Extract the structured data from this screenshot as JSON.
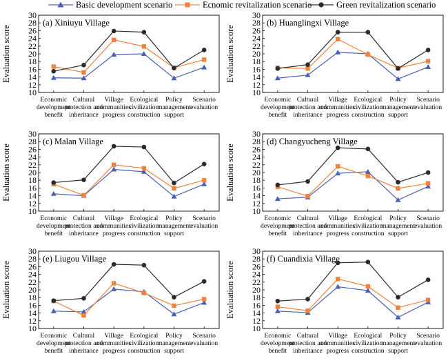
{
  "legend": {
    "series": [
      {
        "name": "Basic development scenario",
        "color": "#4a5fb5",
        "marker": "triangle"
      },
      {
        "name": "Ecnomic revitalization scenario",
        "color": "#f0823c",
        "marker": "square"
      },
      {
        "name": "Green revitalization scenario",
        "color": "#2a2a2a",
        "marker": "circle"
      }
    ]
  },
  "categories": [
    [
      "Economic",
      "development",
      "benefit"
    ],
    [
      "Cultural",
      "protection and",
      "inheritance"
    ],
    [
      "Village",
      "communities",
      "progress"
    ],
    [
      "Ecological",
      "civilization",
      "construction"
    ],
    [
      "Policy",
      "management",
      "support"
    ],
    [
      "Scenario",
      "evaluation"
    ]
  ],
  "ylabel": "Evaluation score",
  "yticks": [
    "10",
    "12",
    "14",
    "16",
    "18",
    "20",
    "22",
    "24",
    "26",
    "28",
    "30"
  ],
  "chart_data": [
    {
      "type": "line",
      "title": "(a) Xiniuyu Village",
      "ylim": [
        10,
        30
      ],
      "series": [
        {
          "name": "Basic development scenario",
          "values": [
            13.8,
            13.7,
            19.8,
            20.0,
            13.7,
            16.5
          ]
        },
        {
          "name": "Ecnomic revitalization scenario",
          "values": [
            16.7,
            15.2,
            23.6,
            21.9,
            16.4,
            18.5
          ]
        },
        {
          "name": "Green revitalization scenario",
          "values": [
            15.5,
            17.1,
            25.9,
            25.6,
            16.3,
            21.0
          ]
        }
      ]
    },
    {
      "type": "line",
      "title": "(b) Huanglingxi Village",
      "ylim": [
        10,
        30
      ],
      "series": [
        {
          "name": "Basic development scenario",
          "values": [
            13.7,
            14.5,
            20.4,
            20.0,
            13.5,
            16.6
          ]
        },
        {
          "name": "Ecnomic revitalization scenario",
          "values": [
            16.4,
            16.2,
            23.8,
            19.8,
            16.3,
            18.1
          ]
        },
        {
          "name": "Green revitalization scenario",
          "values": [
            16.2,
            17.2,
            25.6,
            25.6,
            16.2,
            21.0
          ]
        }
      ]
    },
    {
      "type": "line",
      "title": "(c) Malan Village",
      "ylim": [
        10,
        30
      ],
      "series": [
        {
          "name": "Basic development scenario",
          "values": [
            14.5,
            14.0,
            20.8,
            20.2,
            13.8,
            17.0
          ]
        },
        {
          "name": "Ecnomic revitalization scenario",
          "values": [
            17.0,
            14.1,
            22.0,
            21.1,
            15.9,
            18.0
          ]
        },
        {
          "name": "Green revitalization scenario",
          "values": [
            17.4,
            18.1,
            26.8,
            26.6,
            17.3,
            22.2
          ]
        }
      ]
    },
    {
      "type": "line",
      "title": "(d) Changyucheng Village",
      "ylim": [
        10,
        30
      ],
      "series": [
        {
          "name": "Basic development scenario",
          "values": [
            13.2,
            13.6,
            19.8,
            20.2,
            12.9,
            16.4
          ]
        },
        {
          "name": "Ecnomic revitalization scenario",
          "values": [
            16.3,
            13.9,
            21.6,
            19.1,
            15.9,
            17.2
          ]
        },
        {
          "name": "Green revitalization scenario",
          "values": [
            16.8,
            17.7,
            26.4,
            26.1,
            17.5,
            20.0
          ]
        }
      ]
    },
    {
      "type": "line",
      "title": "(e) Liugou Village",
      "ylim": [
        10,
        30
      ],
      "series": [
        {
          "name": "Basic development scenario",
          "values": [
            14.5,
            14.3,
            20.2,
            19.5,
            13.7,
            16.7
          ]
        },
        {
          "name": "Ecnomic revitalization scenario",
          "values": [
            17.1,
            13.4,
            21.7,
            19.2,
            15.9,
            17.6
          ]
        },
        {
          "name": "Green revitalization scenario",
          "values": [
            17.2,
            17.8,
            26.6,
            26.4,
            18.1,
            22.2
          ]
        }
      ]
    },
    {
      "type": "line",
      "title": "(f) Cuandixia Village",
      "ylim": [
        10,
        30
      ],
      "series": [
        {
          "name": "Basic development scenario",
          "values": [
            14.5,
            14.1,
            20.8,
            19.8,
            12.9,
            16.8
          ]
        },
        {
          "name": "Ecnomic revitalization scenario",
          "values": [
            15.6,
            14.6,
            22.8,
            20.9,
            15.4,
            17.4
          ]
        },
        {
          "name": "Green revitalization scenario",
          "values": [
            17.1,
            17.6,
            27.0,
            27.2,
            18.1,
            22.6
          ]
        }
      ]
    }
  ]
}
